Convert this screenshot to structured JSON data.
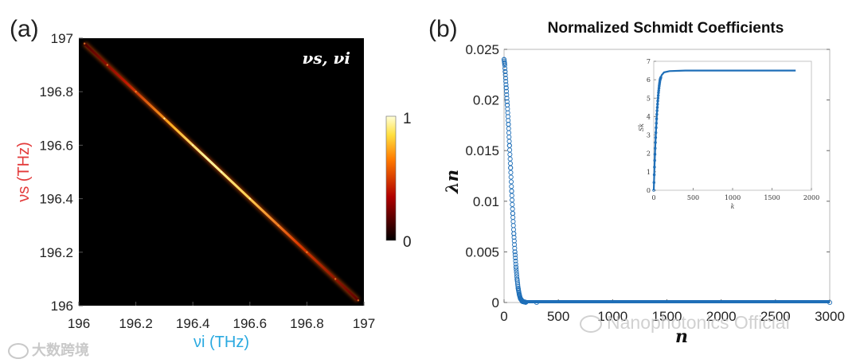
{
  "chart_data": [
    {
      "type": "heatmap",
      "panel_label": "(a)",
      "annotation": "νs, νi",
      "xlabel": "νi (THz)",
      "ylabel": "νs (THz)",
      "xlim": [
        196,
        197
      ],
      "ylim": [
        196,
        197
      ],
      "x_ticks": [
        "196",
        "196.2",
        "196.4",
        "196.6",
        "196.8",
        "197"
      ],
      "y_ticks": [
        "196",
        "196.2",
        "196.4",
        "196.6",
        "196.8",
        "197"
      ],
      "colorbar": {
        "min": 0,
        "max": 1,
        "tick_labels": [
          "0",
          "1"
        ],
        "colormap": "hot"
      },
      "ridge": {
        "x": [
          196.02,
          196.1,
          196.2,
          196.3,
          196.4,
          196.5,
          196.6,
          196.7,
          196.8,
          196.9,
          196.98
        ],
        "y": [
          196.98,
          196.9,
          196.8,
          196.7,
          196.6,
          196.5,
          196.4,
          196.3,
          196.2,
          196.1,
          196.02
        ],
        "intensity": [
          0.25,
          0.45,
          0.6,
          0.85,
          1.0,
          1.0,
          0.95,
          0.8,
          0.6,
          0.45,
          0.3
        ]
      },
      "colors": {
        "background": "#000000",
        "peak": "#ffff80"
      }
    },
    {
      "type": "scatter",
      "panel_label": "(b)",
      "title": "Normalized Schmidt Coefficients",
      "xlabel": "n",
      "ylabel": "λn",
      "xlim": [
        0,
        3000
      ],
      "ylim": [
        0,
        0.025
      ],
      "x_ticks": [
        "0",
        "500",
        "1000",
        "1500",
        "2000",
        "2500",
        "3000"
      ],
      "y_ticks": [
        "0",
        "0.005",
        "0.01",
        "0.015",
        "0.02",
        "0.025"
      ],
      "series": [
        {
          "marker": "open-circle",
          "color": "#1f6fb8",
          "points": [
            [
              0,
              0.024
            ],
            [
              5,
              0.0236
            ],
            [
              10,
              0.0228
            ],
            [
              20,
              0.0212
            ],
            [
              30,
              0.0195
            ],
            [
              40,
              0.0176
            ],
            [
              50,
              0.0155
            ],
            [
              60,
              0.0133
            ],
            [
              70,
              0.011
            ],
            [
              80,
              0.0088
            ],
            [
              90,
              0.0068
            ],
            [
              100,
              0.005
            ],
            [
              110,
              0.0035
            ],
            [
              120,
              0.0023
            ],
            [
              130,
              0.0014
            ],
            [
              140,
              0.0008
            ],
            [
              150,
              0.0004
            ],
            [
              170,
              0.0001
            ],
            [
              200,
              2e-05
            ],
            [
              300,
              0.0
            ],
            [
              3000,
              0.0
            ]
          ]
        }
      ],
      "inset": {
        "xlabel": "k",
        "ylabel": "Sk",
        "xlim": [
          0,
          2000
        ],
        "ylim": [
          0,
          7
        ],
        "x_ticks": [
          "0",
          "500",
          "1000",
          "1500",
          "2000"
        ],
        "y_ticks": [
          "0",
          "1",
          "2",
          "3",
          "4",
          "5",
          "6",
          "7"
        ],
        "points": [
          [
            0,
            0.0
          ],
          [
            10,
            1.4
          ],
          [
            20,
            2.5
          ],
          [
            30,
            3.4
          ],
          [
            40,
            4.2
          ],
          [
            50,
            4.8
          ],
          [
            60,
            5.3
          ],
          [
            70,
            5.7
          ],
          [
            80,
            6.0
          ],
          [
            100,
            6.25
          ],
          [
            130,
            6.4
          ],
          [
            200,
            6.47
          ],
          [
            400,
            6.5
          ],
          [
            1000,
            6.5
          ],
          [
            1800,
            6.5
          ]
        ]
      }
    }
  ],
  "watermarks": {
    "left": "大数跨境",
    "right": "Nanophotonics Official"
  }
}
